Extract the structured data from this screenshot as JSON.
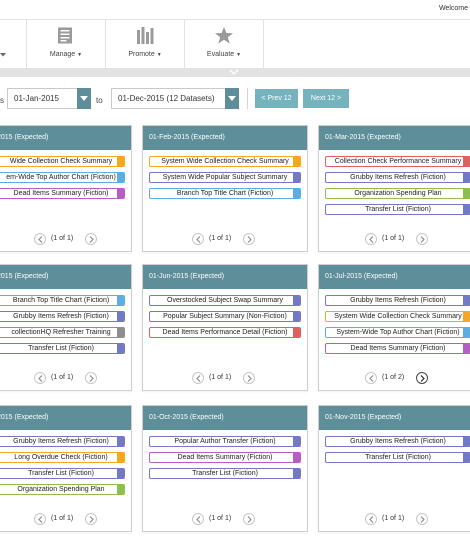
{
  "header": {
    "welcome": "Welcome"
  },
  "nav": {
    "items": [
      {
        "label": "",
        "icon": "chevron-down-icon"
      },
      {
        "label": "Manage",
        "icon": "document-icon"
      },
      {
        "label": "Promote",
        "icon": "bar-chart-icon"
      },
      {
        "label": "Evaluate",
        "icon": "star-icon"
      }
    ]
  },
  "filters": {
    "from_label": "s",
    "from_value": "01-Jan-2015",
    "to_label": "to",
    "to_value": "01-Dec-2015 (12 Datasets)",
    "prev_label": "< Prev 12",
    "next_label": "Next 12 >"
  },
  "colors": {
    "header_teal": "#5d8e99",
    "button_teal": "#76b3bf",
    "orange": "#f6a623",
    "blue": "#5aaee6",
    "purple": "#b45dc5",
    "slate": "#7279c6",
    "grey": "#8e8e8e",
    "green": "#8cc04b",
    "red": "#e06060"
  },
  "cards": [
    {
      "title": "2015 (Expected)",
      "page": "(1 of 1)",
      "next_dark": false,
      "reports": [
        {
          "name": "Wide Collection Check Summary",
          "color": "#f6a623"
        },
        {
          "name": "em-Wide Top Author Chart (Fiction)",
          "color": "#5aaee6"
        },
        {
          "name": "Dead Items Summary (Fiction)",
          "color": "#b45dc5"
        }
      ]
    },
    {
      "title": "01-Feb-2015 (Expected)",
      "page": "(1 of 1)",
      "next_dark": false,
      "reports": [
        {
          "name": "System Wide Collection Check Summary",
          "color": "#f6a623"
        },
        {
          "name": "System Wide Popular Subject Summary",
          "color": "#7279c6"
        },
        {
          "name": "Branch Top Title Chart (Fiction)",
          "color": "#5aaee6"
        }
      ]
    },
    {
      "title": "01-Mar-2015 (Expected)",
      "page": "(1 of 1)",
      "next_dark": false,
      "reports": [
        {
          "name": "Collection Check Performance Summary",
          "color": "#e06060"
        },
        {
          "name": "Grubby Items Refresh (Fiction)",
          "color": "#7279c6"
        },
        {
          "name": "Organization Spending Plan",
          "color": "#8cc04b"
        },
        {
          "name": "Transfer List (Fiction)",
          "color": "#7279c6"
        }
      ]
    },
    {
      "title": "2015 (Expected)",
      "page": "(1 of 1)",
      "next_dark": false,
      "reports": [
        {
          "name": "Branch Top Title Chart (Fiction)",
          "color": "#5aaee6"
        },
        {
          "name": "Grubby Items Refresh (Fiction)",
          "color": "#7279c6"
        },
        {
          "name": "collectionHQ Refresher Training",
          "color": "#8e8e8e"
        },
        {
          "name": "Transfer List (Fiction)",
          "color": "#7279c6"
        }
      ]
    },
    {
      "title": "01-Jun-2015 (Expected)",
      "page": "(1 of 1)",
      "next_dark": false,
      "reports": [
        {
          "name": "Overstocked Subject Swap Summary",
          "color": "#7279c6"
        },
        {
          "name": "Popular Subject Summary (Non-Fiction)",
          "color": "#7279c6"
        },
        {
          "name": "Dead Items Performance Detail (Fiction)",
          "color": "#e06060"
        }
      ]
    },
    {
      "title": "01-Jul-2015 (Expected)",
      "page": "(1 of 2)",
      "next_dark": true,
      "reports": [
        {
          "name": "Grubby Items Refresh (Fiction)",
          "color": "#7279c6"
        },
        {
          "name": "System Wide Collection Check Summary",
          "color": "#f6a623"
        },
        {
          "name": "System-Wide Top Author Chart (Fiction)",
          "color": "#5aaee6"
        },
        {
          "name": "Dead Items Summary (Fiction)",
          "color": "#b45dc5"
        }
      ]
    },
    {
      "title": "2015 (Expected)",
      "page": "(1 of 1)",
      "next_dark": false,
      "reports": [
        {
          "name": "Grubby Items Refresh (Fiction)",
          "color": "#7279c6"
        },
        {
          "name": "Long Overdue Check (Fiction)",
          "color": "#f6a623"
        },
        {
          "name": "Transfer List (Fiction)",
          "color": "#7279c6"
        },
        {
          "name": "Organization Spending Plan",
          "color": "#8cc04b"
        }
      ]
    },
    {
      "title": "01-Oct-2015 (Expected)",
      "page": "(1 of 1)",
      "next_dark": false,
      "reports": [
        {
          "name": "Popular Author Transfer (Fiction)",
          "color": "#7279c6"
        },
        {
          "name": "Dead Items Summary (Fiction)",
          "color": "#b45dc5"
        },
        {
          "name": "Transfer List (Fiction)",
          "color": "#7279c6"
        }
      ]
    },
    {
      "title": "01-Nov-2015 (Expected)",
      "page": "(1 of 1)",
      "next_dark": false,
      "reports": [
        {
          "name": "Grubby Items Refresh (Fiction)",
          "color": "#7279c6"
        },
        {
          "name": "Transfer List (Fiction)",
          "color": "#7279c6"
        }
      ]
    }
  ]
}
